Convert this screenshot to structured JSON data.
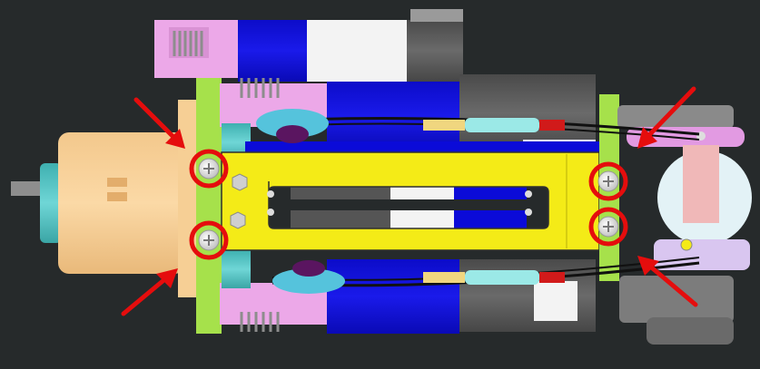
{
  "scene": {
    "background": "#262a2b",
    "palette": {
      "motor_housing": "#f6cf95",
      "motor_housing_shade": "#e9b97a",
      "shaft_collar": "#5cc6c6",
      "shaft": "#8e8e8e",
      "bracket_plate": "#f4eb17",
      "bracket_outline": "#2f2f2f",
      "end_plate": "#a6e14b",
      "mount_blocks": "#eca8e8",
      "motor_can_blue": "#0b0bd8",
      "motor_can_white": "#f3f3f3",
      "motor_can_grey": "#5b5b5b",
      "cable": "#111111",
      "connector_body": "#9be9e7",
      "connector_tip": "#f0d67f",
      "connector_pins": "#d11a1a",
      "spring": "#9a9a9a",
      "bearing_blue": "#55c3dc",
      "bearing_core": "#5a1560",
      "screw": "#d8d8d8",
      "highlight_circle": "#e50d0d",
      "arrow": "#e50d0d"
    },
    "highlighted_screws": 4,
    "callout_arrows": 4,
    "icons": {
      "screw": "phillips-screw-icon",
      "arrow": "arrow-icon",
      "circle": "highlight-circle"
    }
  }
}
